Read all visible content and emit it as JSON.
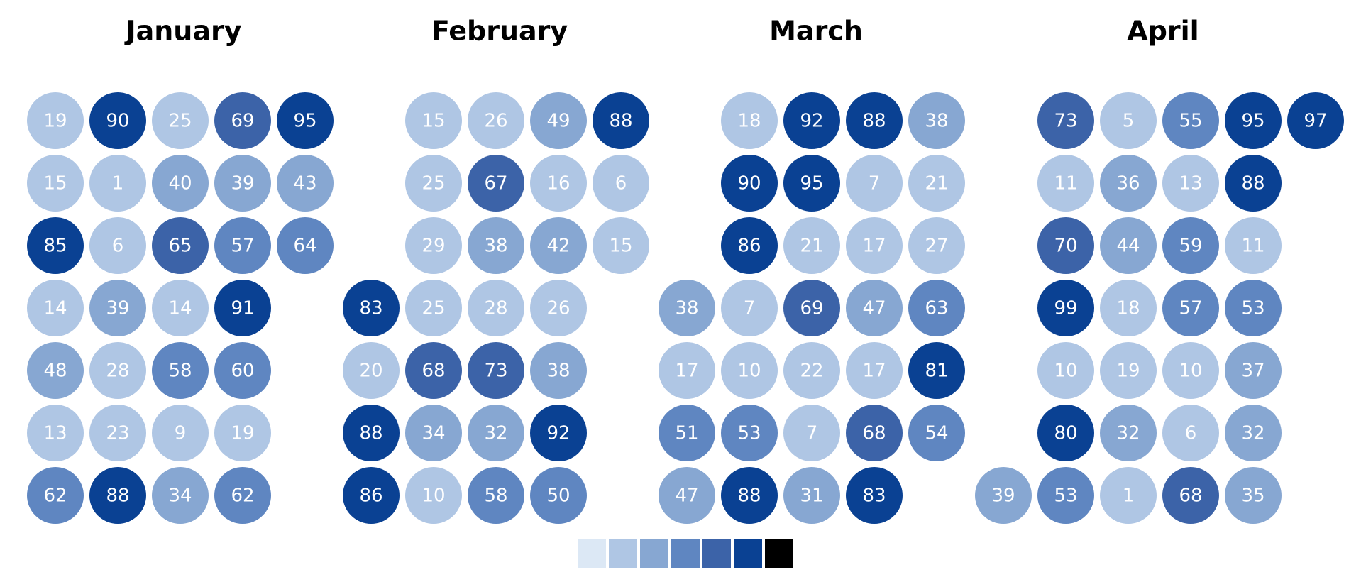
{
  "chart_data": {
    "type": "calendar-heatmap",
    "title": "",
    "color_scale": [
      "#dce8f5",
      "#afc6e4",
      "#87a7d2",
      "#5f86c1",
      "#3c63a8",
      "#0a4193",
      "#000000"
    ],
    "months": [
      {
        "name": "January",
        "cells": [
          {
            "week": 0,
            "day": 0,
            "value": 19
          },
          {
            "week": 1,
            "day": 0,
            "value": 90
          },
          {
            "week": 2,
            "day": 0,
            "value": 25
          },
          {
            "week": 3,
            "day": 0,
            "value": 69
          },
          {
            "week": 4,
            "day": 0,
            "value": 95
          },
          {
            "week": 0,
            "day": 1,
            "value": 15
          },
          {
            "week": 1,
            "day": 1,
            "value": 1
          },
          {
            "week": 2,
            "day": 1,
            "value": 40
          },
          {
            "week": 3,
            "day": 1,
            "value": 39
          },
          {
            "week": 4,
            "day": 1,
            "value": 43
          },
          {
            "week": 0,
            "day": 2,
            "value": 85
          },
          {
            "week": 1,
            "day": 2,
            "value": 6
          },
          {
            "week": 2,
            "day": 2,
            "value": 65
          },
          {
            "week": 3,
            "day": 2,
            "value": 57
          },
          {
            "week": 4,
            "day": 2,
            "value": 64
          },
          {
            "week": 0,
            "day": 3,
            "value": 14
          },
          {
            "week": 1,
            "day": 3,
            "value": 39
          },
          {
            "week": 2,
            "day": 3,
            "value": 14
          },
          {
            "week": 3,
            "day": 3,
            "value": 91
          },
          {
            "week": 0,
            "day": 4,
            "value": 48
          },
          {
            "week": 1,
            "day": 4,
            "value": 28
          },
          {
            "week": 2,
            "day": 4,
            "value": 58
          },
          {
            "week": 3,
            "day": 4,
            "value": 60
          },
          {
            "week": 0,
            "day": 5,
            "value": 13
          },
          {
            "week": 1,
            "day": 5,
            "value": 23
          },
          {
            "week": 2,
            "day": 5,
            "value": 9
          },
          {
            "week": 3,
            "day": 5,
            "value": 19
          },
          {
            "week": 0,
            "day": 6,
            "value": 62
          },
          {
            "week": 1,
            "day": 6,
            "value": 88
          },
          {
            "week": 2,
            "day": 6,
            "value": 34
          },
          {
            "week": 3,
            "day": 6,
            "value": 62
          }
        ]
      },
      {
        "name": "February",
        "cells": [
          {
            "week": 1,
            "day": 0,
            "value": 15
          },
          {
            "week": 2,
            "day": 0,
            "value": 26
          },
          {
            "week": 3,
            "day": 0,
            "value": 49
          },
          {
            "week": 4,
            "day": 0,
            "value": 88
          },
          {
            "week": 1,
            "day": 1,
            "value": 25
          },
          {
            "week": 2,
            "day": 1,
            "value": 67
          },
          {
            "week": 3,
            "day": 1,
            "value": 16
          },
          {
            "week": 4,
            "day": 1,
            "value": 6
          },
          {
            "week": 1,
            "day": 2,
            "value": 29
          },
          {
            "week": 2,
            "day": 2,
            "value": 38
          },
          {
            "week": 3,
            "day": 2,
            "value": 42
          },
          {
            "week": 4,
            "day": 2,
            "value": 15
          },
          {
            "week": 0,
            "day": 3,
            "value": 83
          },
          {
            "week": 1,
            "day": 3,
            "value": 25
          },
          {
            "week": 2,
            "day": 3,
            "value": 28
          },
          {
            "week": 3,
            "day": 3,
            "value": 26
          },
          {
            "week": 0,
            "day": 4,
            "value": 20
          },
          {
            "week": 1,
            "day": 4,
            "value": 68
          },
          {
            "week": 2,
            "day": 4,
            "value": 73
          },
          {
            "week": 3,
            "day": 4,
            "value": 38
          },
          {
            "week": 0,
            "day": 5,
            "value": 88
          },
          {
            "week": 1,
            "day": 5,
            "value": 34
          },
          {
            "week": 2,
            "day": 5,
            "value": 32
          },
          {
            "week": 3,
            "day": 5,
            "value": 92
          },
          {
            "week": 0,
            "day": 6,
            "value": 86
          },
          {
            "week": 1,
            "day": 6,
            "value": 10
          },
          {
            "week": 2,
            "day": 6,
            "value": 58
          },
          {
            "week": 3,
            "day": 6,
            "value": 50
          }
        ]
      },
      {
        "name": "March",
        "cells": [
          {
            "week": 1,
            "day": 0,
            "value": 18
          },
          {
            "week": 2,
            "day": 0,
            "value": 92
          },
          {
            "week": 3,
            "day": 0,
            "value": 88
          },
          {
            "week": 4,
            "day": 0,
            "value": 38
          },
          {
            "week": 1,
            "day": 1,
            "value": 90
          },
          {
            "week": 2,
            "day": 1,
            "value": 95
          },
          {
            "week": 3,
            "day": 1,
            "value": 7
          },
          {
            "week": 4,
            "day": 1,
            "value": 21
          },
          {
            "week": 1,
            "day": 2,
            "value": 86
          },
          {
            "week": 2,
            "day": 2,
            "value": 21
          },
          {
            "week": 3,
            "day": 2,
            "value": 17
          },
          {
            "week": 4,
            "day": 2,
            "value": 27
          },
          {
            "week": 0,
            "day": 3,
            "value": 38
          },
          {
            "week": 1,
            "day": 3,
            "value": 7
          },
          {
            "week": 2,
            "day": 3,
            "value": 69
          },
          {
            "week": 3,
            "day": 3,
            "value": 47
          },
          {
            "week": 4,
            "day": 3,
            "value": 63
          },
          {
            "week": 0,
            "day": 4,
            "value": 17
          },
          {
            "week": 1,
            "day": 4,
            "value": 10
          },
          {
            "week": 2,
            "day": 4,
            "value": 22
          },
          {
            "week": 3,
            "day": 4,
            "value": 17
          },
          {
            "week": 4,
            "day": 4,
            "value": 81
          },
          {
            "week": 0,
            "day": 5,
            "value": 51
          },
          {
            "week": 1,
            "day": 5,
            "value": 53
          },
          {
            "week": 2,
            "day": 5,
            "value": 7
          },
          {
            "week": 3,
            "day": 5,
            "value": 68
          },
          {
            "week": 4,
            "day": 5,
            "value": 54
          },
          {
            "week": 0,
            "day": 6,
            "value": 47
          },
          {
            "week": 1,
            "day": 6,
            "value": 88
          },
          {
            "week": 2,
            "day": 6,
            "value": 31
          },
          {
            "week": 3,
            "day": 6,
            "value": 83
          }
        ]
      },
      {
        "name": "April",
        "cells": [
          {
            "week": 1,
            "day": 0,
            "value": 73
          },
          {
            "week": 2,
            "day": 0,
            "value": 5
          },
          {
            "week": 3,
            "day": 0,
            "value": 55
          },
          {
            "week": 4,
            "day": 0,
            "value": 95
          },
          {
            "week": 5,
            "day": 0,
            "value": 97
          },
          {
            "week": 1,
            "day": 1,
            "value": 11
          },
          {
            "week": 2,
            "day": 1,
            "value": 36
          },
          {
            "week": 3,
            "day": 1,
            "value": 13
          },
          {
            "week": 4,
            "day": 1,
            "value": 88
          },
          {
            "week": 1,
            "day": 2,
            "value": 70
          },
          {
            "week": 2,
            "day": 2,
            "value": 44
          },
          {
            "week": 3,
            "day": 2,
            "value": 59
          },
          {
            "week": 4,
            "day": 2,
            "value": 11
          },
          {
            "week": 1,
            "day": 3,
            "value": 99
          },
          {
            "week": 2,
            "day": 3,
            "value": 18
          },
          {
            "week": 3,
            "day": 3,
            "value": 57
          },
          {
            "week": 4,
            "day": 3,
            "value": 53
          },
          {
            "week": 1,
            "day": 4,
            "value": 10
          },
          {
            "week": 2,
            "day": 4,
            "value": 19
          },
          {
            "week": 3,
            "day": 4,
            "value": 10
          },
          {
            "week": 4,
            "day": 4,
            "value": 37
          },
          {
            "week": 1,
            "day": 5,
            "value": 80
          },
          {
            "week": 2,
            "day": 5,
            "value": 32
          },
          {
            "week": 3,
            "day": 5,
            "value": 6
          },
          {
            "week": 4,
            "day": 5,
            "value": 32
          },
          {
            "week": 0,
            "day": 6,
            "value": 39
          },
          {
            "week": 1,
            "day": 6,
            "value": 53
          },
          {
            "week": 2,
            "day": 6,
            "value": 1
          },
          {
            "week": 3,
            "day": 6,
            "value": 68
          },
          {
            "week": 4,
            "day": 6,
            "value": 35
          }
        ]
      }
    ]
  }
}
